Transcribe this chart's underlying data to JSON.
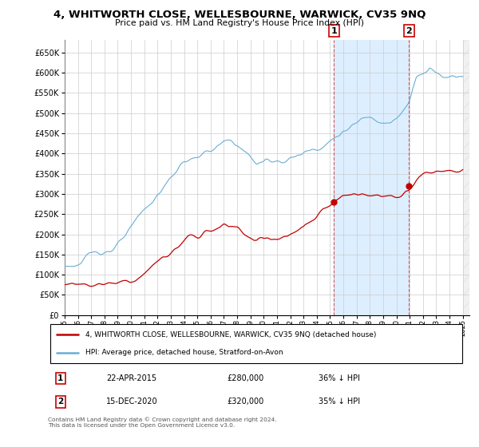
{
  "title": "4, WHITWORTH CLOSE, WELLESBOURNE, WARWICK, CV35 9NQ",
  "subtitle": "Price paid vs. HM Land Registry's House Price Index (HPI)",
  "legend_line1": "4, WHITWORTH CLOSE, WELLESBOURNE, WARWICK, CV35 9NQ (detached house)",
  "legend_line2": "HPI: Average price, detached house, Stratford-on-Avon",
  "annotation1": {
    "label": "1",
    "date": "22-APR-2015",
    "price": "£280,000",
    "note": "36% ↓ HPI"
  },
  "annotation2": {
    "label": "2",
    "date": "15-DEC-2020",
    "price": "£320,000",
    "note": "35% ↓ HPI"
  },
  "footer": "Contains HM Land Registry data © Crown copyright and database right 2024.\nThis data is licensed under the Open Government Licence v3.0.",
  "ylim": [
    0,
    680000
  ],
  "yticks": [
    0,
    50000,
    100000,
    150000,
    200000,
    250000,
    300000,
    350000,
    400000,
    450000,
    500000,
    550000,
    600000,
    650000
  ],
  "hpi_color": "#6aadd5",
  "price_color": "#c00000",
  "vline1_x": 2015.29,
  "vline2_x": 2020.95,
  "marker1_x": 2015.29,
  "marker1_y_price": 280000,
  "marker2_x": 2020.95,
  "marker2_y_price": 320000,
  "shade_color": "#ddeeff",
  "hatch_start": 2025.0,
  "xlim_start": 1995,
  "xlim_end": 2025.5
}
